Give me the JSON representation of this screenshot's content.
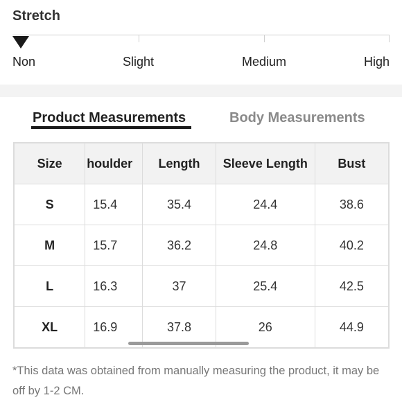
{
  "stretch": {
    "title": "Stretch",
    "levels": [
      "Non",
      "Slight",
      "Medium",
      "High"
    ],
    "selected": "Non"
  },
  "tabs": {
    "product": "Product Measurements",
    "body": "Body Measurements",
    "active": "Product Measurements"
  },
  "table": {
    "headers": [
      "Size",
      "houlder",
      "Length",
      "Sleeve Length",
      "Bust"
    ],
    "rows": [
      [
        "S",
        "15.4",
        "35.4",
        "24.4",
        "38.6"
      ],
      [
        "M",
        "15.7",
        "36.2",
        "24.8",
        "40.2"
      ],
      [
        "L",
        "16.3",
        "37",
        "25.4",
        "42.5"
      ],
      [
        "XL",
        "16.9",
        "37.8",
        "26",
        "44.9"
      ]
    ]
  },
  "footnote": "*This data was obtained from manually measuring the product, it may be off by 1-2 CM."
}
